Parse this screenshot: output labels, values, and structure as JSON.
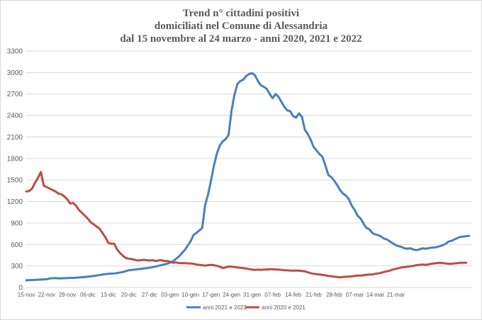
{
  "chart_data": {
    "type": "line",
    "title": [
      "Trend n° cittadini positivi",
      "domiciliati nel Comune di Alessandria",
      "dal 15 novembre al 24 marzo - anni 2020, 2021 e 2022"
    ],
    "xlabel": "",
    "ylabel": "",
    "ylim": [
      0,
      3300
    ],
    "yticks": [
      0,
      300,
      600,
      900,
      1200,
      1500,
      1800,
      2100,
      2400,
      2700,
      3000,
      3300
    ],
    "x_ticklabels": [
      "15-nov",
      "22-nov",
      "29-nov",
      "06-dic",
      "13-dic",
      "20-dic",
      "27-dic",
      "03-gen",
      "10-gen",
      "17-gen",
      "24-gen",
      "31-gen",
      "07-feb",
      "14-feb",
      "21-feb",
      "28-feb",
      "07-mar",
      "14-mar",
      "21-mar"
    ],
    "x_day_range": [
      0,
      129
    ],
    "grid": true,
    "legend_position": "bottom",
    "series": [
      {
        "name": "anni 2021 e 2022",
        "color": "#4a7ebb",
        "points": [
          [
            0,
            100
          ],
          [
            3,
            105
          ],
          [
            5,
            110
          ],
          [
            7,
            115
          ],
          [
            8,
            125
          ],
          [
            10,
            130
          ],
          [
            11,
            125
          ],
          [
            14,
            130
          ],
          [
            17,
            135
          ],
          [
            20,
            145
          ],
          [
            23,
            160
          ],
          [
            26,
            180
          ],
          [
            28,
            190
          ],
          [
            30,
            195
          ],
          [
            33,
            215
          ],
          [
            35,
            240
          ],
          [
            38,
            255
          ],
          [
            40,
            265
          ],
          [
            42,
            275
          ],
          [
            44,
            290
          ],
          [
            46,
            310
          ],
          [
            48,
            330
          ],
          [
            50,
            365
          ],
          [
            52,
            430
          ],
          [
            54,
            520
          ],
          [
            56,
            640
          ],
          [
            57,
            730
          ],
          [
            58,
            760
          ],
          [
            60,
            830
          ],
          [
            61,
            1150
          ],
          [
            62,
            1300
          ],
          [
            63,
            1490
          ],
          [
            64,
            1700
          ],
          [
            65,
            1870
          ],
          [
            66,
            1980
          ],
          [
            67,
            2040
          ],
          [
            68,
            2070
          ],
          [
            69,
            2130
          ],
          [
            70,
            2470
          ],
          [
            71,
            2690
          ],
          [
            72,
            2840
          ],
          [
            73,
            2880
          ],
          [
            74,
            2900
          ],
          [
            75,
            2950
          ],
          [
            76,
            2980
          ],
          [
            77,
            2990
          ],
          [
            78,
            2960
          ],
          [
            79,
            2880
          ],
          [
            80,
            2820
          ],
          [
            81,
            2800
          ],
          [
            82,
            2770
          ],
          [
            83,
            2700
          ],
          [
            84,
            2640
          ],
          [
            85,
            2700
          ],
          [
            86,
            2660
          ],
          [
            87,
            2590
          ],
          [
            88,
            2520
          ],
          [
            89,
            2470
          ],
          [
            90,
            2460
          ],
          [
            91,
            2390
          ],
          [
            92,
            2370
          ],
          [
            93,
            2430
          ],
          [
            94,
            2380
          ],
          [
            95,
            2200
          ],
          [
            96,
            2140
          ],
          [
            97,
            2060
          ],
          [
            98,
            1960
          ],
          [
            99,
            1910
          ],
          [
            100,
            1860
          ],
          [
            101,
            1820
          ],
          [
            102,
            1700
          ],
          [
            103,
            1570
          ],
          [
            104,
            1540
          ],
          [
            105,
            1490
          ],
          [
            106,
            1430
          ],
          [
            107,
            1360
          ],
          [
            108,
            1310
          ],
          [
            109,
            1280
          ],
          [
            110,
            1230
          ],
          [
            111,
            1140
          ],
          [
            112,
            1080
          ],
          [
            113,
            1000
          ],
          [
            114,
            960
          ],
          [
            115,
            890
          ],
          [
            116,
            830
          ],
          [
            117,
            810
          ],
          [
            118,
            760
          ],
          [
            119,
            740
          ],
          [
            120,
            730
          ],
          [
            121,
            710
          ],
          [
            122,
            680
          ],
          [
            123,
            670
          ],
          [
            124,
            640
          ],
          [
            125,
            615
          ],
          [
            126,
            590
          ],
          [
            127,
            575
          ],
          [
            128,
            565
          ],
          [
            129,
            545
          ],
          [
            130,
            540
          ],
          [
            131,
            545
          ],
          [
            132,
            530
          ],
          [
            133,
            520
          ],
          [
            134,
            530
          ],
          [
            135,
            545
          ],
          [
            136,
            540
          ],
          [
            137,
            545
          ],
          [
            138,
            555
          ],
          [
            139,
            555
          ],
          [
            140,
            565
          ],
          [
            141,
            575
          ],
          [
            142,
            590
          ],
          [
            143,
            610
          ],
          [
            144,
            640
          ],
          [
            145,
            650
          ],
          [
            146,
            670
          ],
          [
            147,
            690
          ],
          [
            148,
            705
          ],
          [
            149,
            710
          ],
          [
            150,
            715
          ],
          [
            151,
            720
          ]
        ]
      },
      {
        "name": "anni 2020 e 2021",
        "color": "#be4b48",
        "points": [
          [
            0,
            1340
          ],
          [
            1,
            1345
          ],
          [
            2,
            1380
          ],
          [
            3,
            1460
          ],
          [
            4,
            1530
          ],
          [
            5,
            1610
          ],
          [
            6,
            1420
          ],
          [
            7,
            1400
          ],
          [
            8,
            1380
          ],
          [
            9,
            1360
          ],
          [
            10,
            1340
          ],
          [
            11,
            1310
          ],
          [
            12,
            1300
          ],
          [
            13,
            1270
          ],
          [
            14,
            1230
          ],
          [
            15,
            1170
          ],
          [
            16,
            1180
          ],
          [
            17,
            1140
          ],
          [
            18,
            1080
          ],
          [
            19,
            1040
          ],
          [
            20,
            1000
          ],
          [
            21,
            960
          ],
          [
            22,
            910
          ],
          [
            23,
            880
          ],
          [
            24,
            850
          ],
          [
            25,
            820
          ],
          [
            26,
            760
          ],
          [
            27,
            700
          ],
          [
            28,
            620
          ],
          [
            29,
            610
          ],
          [
            30,
            610
          ],
          [
            31,
            530
          ],
          [
            32,
            480
          ],
          [
            33,
            440
          ],
          [
            34,
            410
          ],
          [
            35,
            400
          ],
          [
            36,
            395
          ],
          [
            37,
            385
          ],
          [
            38,
            375
          ],
          [
            39,
            380
          ],
          [
            40,
            385
          ],
          [
            41,
            380
          ],
          [
            42,
            375
          ],
          [
            43,
            380
          ],
          [
            44,
            370
          ],
          [
            45,
            375
          ],
          [
            46,
            380
          ],
          [
            47,
            370
          ],
          [
            48,
            370
          ],
          [
            49,
            360
          ],
          [
            50,
            345
          ],
          [
            51,
            350
          ],
          [
            52,
            340
          ],
          [
            53,
            340
          ],
          [
            54,
            340
          ],
          [
            55,
            335
          ],
          [
            56,
            335
          ],
          [
            57,
            330
          ],
          [
            58,
            320
          ],
          [
            59,
            315
          ],
          [
            60,
            310
          ],
          [
            61,
            305
          ],
          [
            62,
            310
          ],
          [
            63,
            315
          ],
          [
            64,
            310
          ],
          [
            65,
            300
          ],
          [
            66,
            290
          ],
          [
            67,
            270
          ],
          [
            68,
            280
          ],
          [
            69,
            290
          ],
          [
            70,
            290
          ],
          [
            71,
            285
          ],
          [
            72,
            280
          ],
          [
            73,
            275
          ],
          [
            74,
            270
          ],
          [
            75,
            265
          ],
          [
            76,
            255
          ],
          [
            77,
            250
          ],
          [
            78,
            245
          ],
          [
            79,
            250
          ],
          [
            80,
            245
          ],
          [
            81,
            250
          ],
          [
            82,
            250
          ],
          [
            83,
            255
          ],
          [
            84,
            255
          ],
          [
            85,
            250
          ],
          [
            86,
            250
          ],
          [
            87,
            245
          ],
          [
            88,
            240
          ],
          [
            89,
            240
          ],
          [
            90,
            235
          ],
          [
            91,
            235
          ],
          [
            92,
            235
          ],
          [
            93,
            235
          ],
          [
            94,
            230
          ],
          [
            95,
            225
          ],
          [
            96,
            210
          ],
          [
            97,
            200
          ],
          [
            98,
            190
          ],
          [
            99,
            185
          ],
          [
            100,
            180
          ],
          [
            101,
            175
          ],
          [
            102,
            170
          ],
          [
            103,
            160
          ],
          [
            104,
            155
          ],
          [
            105,
            150
          ],
          [
            106,
            145
          ],
          [
            107,
            140
          ],
          [
            108,
            145
          ],
          [
            109,
            150
          ],
          [
            110,
            150
          ],
          [
            111,
            155
          ],
          [
            112,
            160
          ],
          [
            113,
            165
          ],
          [
            114,
            165
          ],
          [
            115,
            170
          ],
          [
            116,
            175
          ],
          [
            117,
            180
          ],
          [
            118,
            180
          ],
          [
            119,
            190
          ],
          [
            120,
            195
          ],
          [
            121,
            205
          ],
          [
            122,
            215
          ],
          [
            123,
            225
          ],
          [
            124,
            235
          ],
          [
            125,
            250
          ],
          [
            126,
            260
          ],
          [
            127,
            270
          ],
          [
            128,
            280
          ],
          [
            129,
            285
          ],
          [
            130,
            290
          ],
          [
            131,
            295
          ],
          [
            132,
            300
          ],
          [
            133,
            310
          ],
          [
            134,
            315
          ],
          [
            135,
            320
          ],
          [
            136,
            315
          ],
          [
            137,
            320
          ],
          [
            138,
            330
          ],
          [
            139,
            335
          ],
          [
            140,
            340
          ],
          [
            141,
            345
          ],
          [
            142,
            340
          ],
          [
            143,
            335
          ],
          [
            144,
            330
          ],
          [
            145,
            330
          ],
          [
            146,
            335
          ],
          [
            147,
            340
          ],
          [
            148,
            345
          ],
          [
            149,
            345
          ],
          [
            150,
            345
          ]
        ]
      }
    ]
  }
}
